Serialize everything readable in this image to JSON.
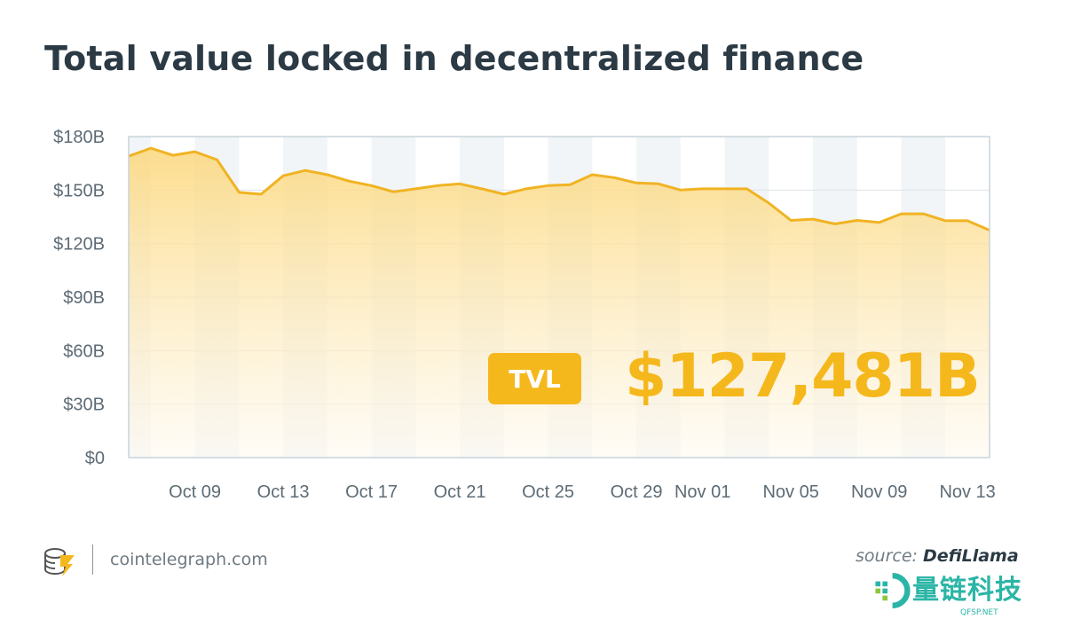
{
  "title": "Total value locked in decentralized finance",
  "chart_data": {
    "type": "area",
    "title": "Total value locked in decentralized finance",
    "xlabel": "",
    "ylabel": "",
    "x": [
      "Oct 06",
      "Oct 07",
      "Oct 08",
      "Oct 09",
      "Oct 10",
      "Oct 11",
      "Oct 12",
      "Oct 13",
      "Oct 14",
      "Oct 15",
      "Oct 16",
      "Oct 17",
      "Oct 18",
      "Oct 19",
      "Oct 20",
      "Oct 21",
      "Oct 22",
      "Oct 23",
      "Oct 24",
      "Oct 25",
      "Oct 26",
      "Oct 27",
      "Oct 28",
      "Oct 29",
      "Oct 30",
      "Oct 31",
      "Nov 01",
      "Nov 02",
      "Nov 03",
      "Nov 04",
      "Nov 05",
      "Nov 06",
      "Nov 07",
      "Nov 08",
      "Nov 09",
      "Nov 10",
      "Nov 11",
      "Nov 12",
      "Nov 13",
      "Nov 14"
    ],
    "values": [
      169,
      173.5,
      169.5,
      171.5,
      167,
      148.7,
      147.7,
      158,
      161,
      158.6,
      155,
      152.5,
      149,
      150.7,
      152.5,
      153.5,
      150.7,
      147.7,
      150.7,
      152.5,
      153,
      158.6,
      157,
      154,
      153.5,
      150,
      150.7,
      150.7,
      150.7,
      142.7,
      133,
      133.7,
      131,
      133,
      131.8,
      136.7,
      136.7,
      132.8,
      132.8,
      127.5
    ],
    "ylim": [
      0,
      180
    ],
    "y_ticks": [
      "$0",
      "$30B",
      "$60B",
      "$90B",
      "$120B",
      "$150B",
      "$180B"
    ],
    "y_tick_values": [
      0,
      30,
      60,
      90,
      120,
      150,
      180
    ],
    "x_ticks": [
      "Oct 09",
      "Oct 13",
      "Oct 17",
      "Oct 21",
      "Oct 25",
      "Oct 29",
      "Nov 01",
      "Nov 05",
      "Nov 09",
      "Nov 13"
    ],
    "grid": true,
    "line_color": "#f0b323",
    "fill_color": "#fcd77a",
    "band_color": "#f1f5f8"
  },
  "annotation": {
    "badge": "TVL",
    "value": "$127,481B",
    "color": "#f5b81c"
  },
  "footer": {
    "site": "cointelegraph.com",
    "source_prefix": "source:",
    "source_name": "DefiLlama"
  },
  "watermark": {
    "text": "量链科技",
    "sub": "QFSP.NET"
  }
}
